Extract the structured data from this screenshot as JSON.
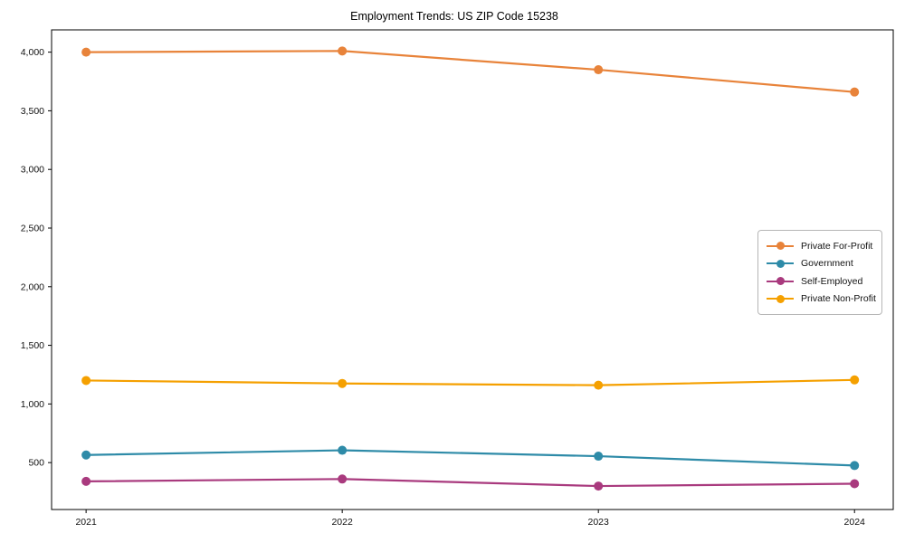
{
  "chart_data": {
    "type": "line",
    "title": "Employment Trends: US ZIP Code 15238",
    "categories": [
      "2021",
      "2022",
      "2023",
      "2024"
    ],
    "series": [
      {
        "name": "Private For-Profit",
        "color": "#E8833A",
        "values": [
          4000,
          4010,
          3850,
          3660
        ]
      },
      {
        "name": "Government",
        "color": "#2E8BA8",
        "values": [
          565,
          605,
          555,
          475
        ]
      },
      {
        "name": "Self-Employed",
        "color": "#A93A7E",
        "values": [
          340,
          360,
          300,
          320
        ]
      },
      {
        "name": "Private Non-Profit",
        "color": "#F5A000",
        "values": [
          1200,
          1175,
          1160,
          1205
        ]
      }
    ],
    "xlabel": "",
    "ylabel": "",
    "ylim": [
      100,
      4190
    ],
    "yticks": {
      "values": [
        500,
        1000,
        1500,
        2000,
        2500,
        3000,
        3500,
        4000
      ],
      "labels": [
        "500",
        "1,000",
        "1,500",
        "2,000",
        "2,500",
        "3,000",
        "3,500",
        "4,000"
      ]
    },
    "grid": false,
    "marker": "circle",
    "legend": {
      "position": "center-right",
      "entries": [
        "Private For-Profit",
        "Government",
        "Self-Employed",
        "Private Non-Profit"
      ]
    }
  }
}
